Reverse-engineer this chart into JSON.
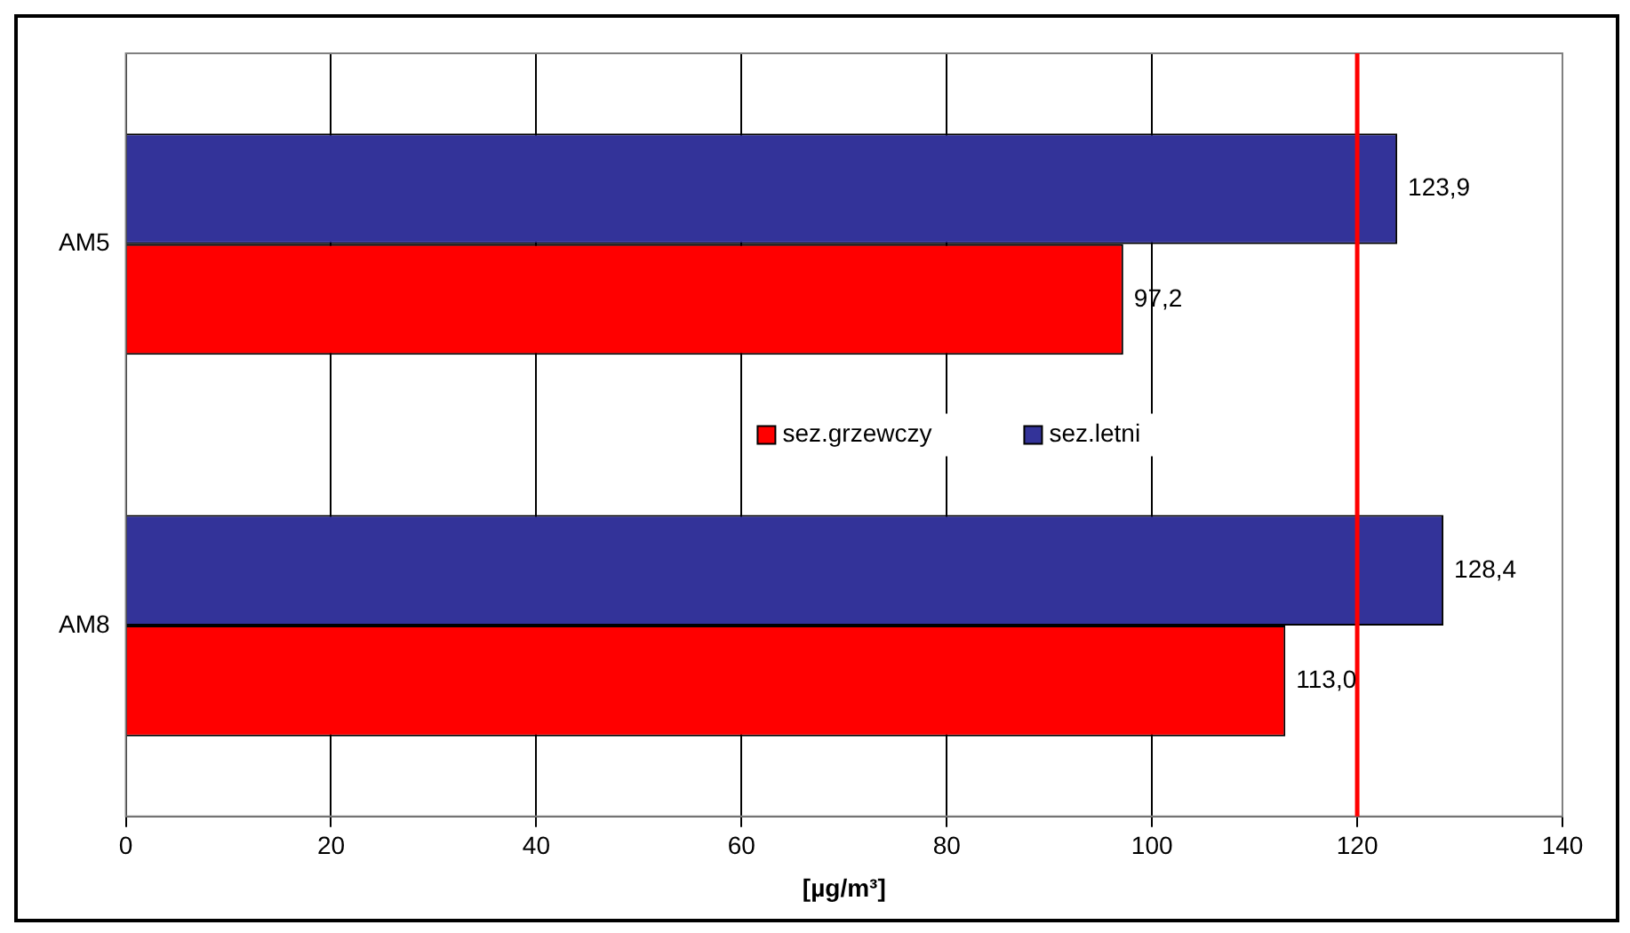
{
  "chart_data": {
    "type": "bar",
    "orientation": "horizontal",
    "xlabel": "[µg/m³]",
    "categories": [
      "AM5",
      "AM8"
    ],
    "series": [
      {
        "name": "sez.grzewczy",
        "color": "#ff0000",
        "values": [
          97.2,
          113.0
        ],
        "value_labels": [
          "97,2",
          "113,0"
        ]
      },
      {
        "name": "sez.letni",
        "color": "#333399",
        "values": [
          123.9,
          128.4
        ],
        "value_labels": [
          "123,9",
          "128,4"
        ]
      }
    ],
    "xlim": [
      0,
      140
    ],
    "xticks": [
      0,
      20,
      40,
      60,
      80,
      100,
      120,
      140
    ],
    "grid": "x",
    "legend": "center",
    "ref_lines": [
      {
        "axis": "x",
        "value": 120,
        "color": "#ff0000"
      }
    ]
  }
}
